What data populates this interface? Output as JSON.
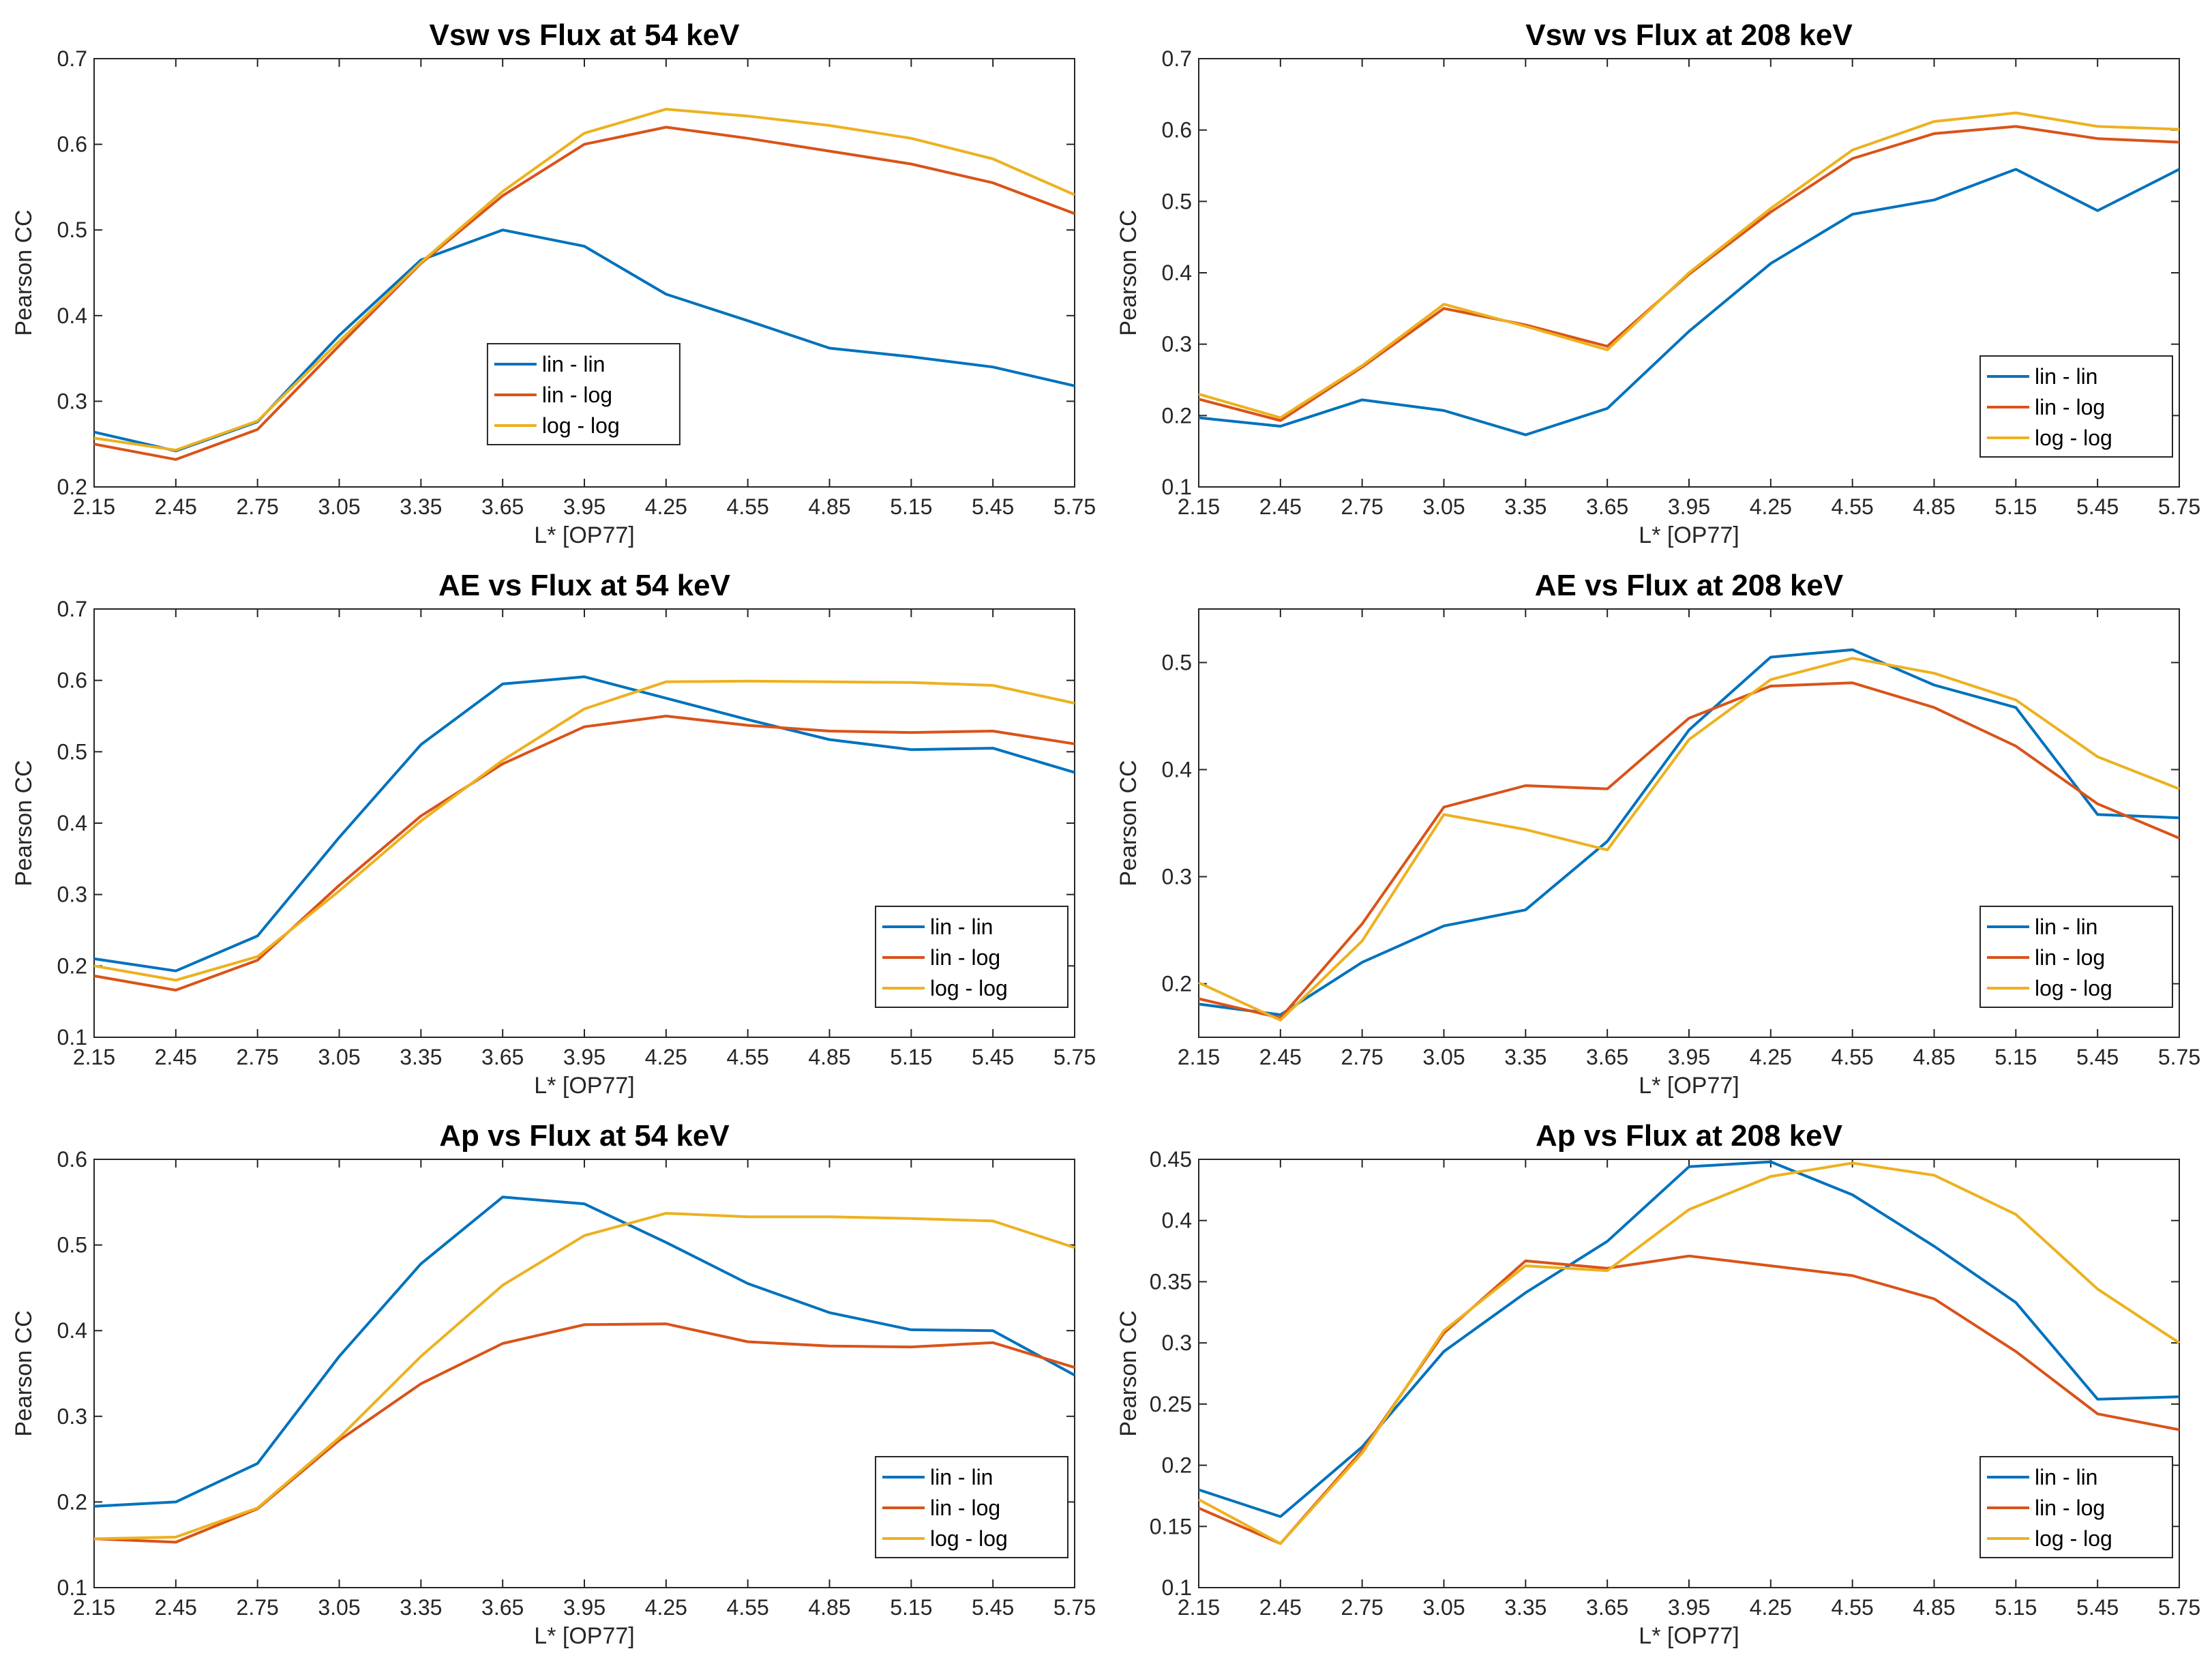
{
  "colors": {
    "lin_lin": "#0072BD",
    "lin_log": "#D95319",
    "log_log": "#EDB120",
    "axis": "#262626",
    "background": "#ffffff"
  },
  "chart_data": [
    {
      "type": "line",
      "title": "Vsw vs Flux at 54 keV",
      "xlabel": "L* [OP77]",
      "ylabel": "Pearson CC",
      "x": [
        2.15,
        2.45,
        2.75,
        3.05,
        3.35,
        3.65,
        3.95,
        4.25,
        4.55,
        4.85,
        5.15,
        5.45,
        5.75
      ],
      "x_ticks": [
        "2.15",
        "2.45",
        "2.75",
        "3.05",
        "3.35",
        "3.65",
        "3.95",
        "4.25",
        "4.55",
        "4.85",
        "5.15",
        "5.45",
        "5.75"
      ],
      "ylim": [
        0.2,
        0.7
      ],
      "y_ticks": [
        "0.2",
        "0.3",
        "0.4",
        "0.5",
        "0.6",
        "0.7"
      ],
      "legend_position": "bottom-center",
      "series": [
        {
          "name": "lin - lin",
          "values": [
            0.264,
            0.242,
            0.276,
            0.377,
            0.465,
            0.5,
            0.481,
            0.425,
            0.394,
            0.362,
            0.352,
            0.34,
            0.318
          ]
        },
        {
          "name": "lin - log",
          "values": [
            0.25,
            0.232,
            0.267,
            0.365,
            0.461,
            0.54,
            0.6,
            0.62,
            0.607,
            0.592,
            0.577,
            0.555,
            0.519
          ]
        },
        {
          "name": "log - log",
          "values": [
            0.257,
            0.243,
            0.277,
            0.37,
            0.462,
            0.545,
            0.613,
            0.641,
            0.633,
            0.622,
            0.607,
            0.583,
            0.541
          ]
        }
      ]
    },
    {
      "type": "line",
      "title": "Vsw vs Flux at 208 keV",
      "xlabel": "L* [OP77]",
      "ylabel": "Pearson CC",
      "x": [
        2.15,
        2.45,
        2.75,
        3.05,
        3.35,
        3.65,
        3.95,
        4.25,
        4.55,
        4.85,
        5.15,
        5.45,
        5.75
      ],
      "x_ticks": [
        "2.15",
        "2.45",
        "2.75",
        "3.05",
        "3.35",
        "3.65",
        "3.95",
        "4.25",
        "4.55",
        "4.85",
        "5.15",
        "5.45",
        "5.75"
      ],
      "ylim": [
        0.1,
        0.7
      ],
      "y_ticks": [
        "0.1",
        "0.2",
        "0.3",
        "0.4",
        "0.5",
        "0.6",
        "0.7"
      ],
      "legend_position": "bottom-right",
      "series": [
        {
          "name": "lin - lin",
          "values": [
            0.197,
            0.185,
            0.222,
            0.207,
            0.173,
            0.21,
            0.318,
            0.413,
            0.482,
            0.502,
            0.545,
            0.487,
            0.545
          ]
        },
        {
          "name": "lin - log",
          "values": [
            0.223,
            0.193,
            0.268,
            0.35,
            0.327,
            0.297,
            0.398,
            0.485,
            0.56,
            0.595,
            0.605,
            0.588,
            0.583
          ]
        },
        {
          "name": "log - log",
          "values": [
            0.23,
            0.197,
            0.27,
            0.356,
            0.325,
            0.292,
            0.4,
            0.49,
            0.572,
            0.612,
            0.624,
            0.605,
            0.601
          ]
        }
      ]
    },
    {
      "type": "line",
      "title": "AE vs Flux at 54 keV",
      "xlabel": "L* [OP77]",
      "ylabel": "Pearson CC",
      "x": [
        2.15,
        2.45,
        2.75,
        3.05,
        3.35,
        3.65,
        3.95,
        4.25,
        4.55,
        4.85,
        5.15,
        5.45,
        5.75
      ],
      "x_ticks": [
        "2.15",
        "2.45",
        "2.75",
        "3.05",
        "3.35",
        "3.65",
        "3.95",
        "4.25",
        "4.55",
        "4.85",
        "5.15",
        "5.45",
        "5.75"
      ],
      "ylim": [
        0.1,
        0.7
      ],
      "y_ticks": [
        "0.1",
        "0.2",
        "0.3",
        "0.4",
        "0.5",
        "0.6",
        "0.7"
      ],
      "legend_position": "bottom-right",
      "series": [
        {
          "name": "lin - lin",
          "values": [
            0.21,
            0.193,
            0.242,
            0.38,
            0.51,
            0.595,
            0.605,
            0.575,
            0.545,
            0.517,
            0.503,
            0.505,
            0.471
          ]
        },
        {
          "name": "lin - log",
          "values": [
            0.186,
            0.166,
            0.208,
            0.313,
            0.41,
            0.483,
            0.535,
            0.55,
            0.537,
            0.529,
            0.527,
            0.529,
            0.511
          ]
        },
        {
          "name": "log - log",
          "values": [
            0.2,
            0.18,
            0.213,
            0.305,
            0.403,
            0.488,
            0.56,
            0.598,
            0.599,
            0.598,
            0.597,
            0.593,
            0.568
          ]
        }
      ]
    },
    {
      "type": "line",
      "title": "AE vs Flux at 208 keV",
      "xlabel": "L* [OP77]",
      "ylabel": "Pearson CC",
      "x": [
        2.15,
        2.45,
        2.75,
        3.05,
        3.35,
        3.65,
        3.95,
        4.25,
        4.55,
        4.85,
        5.15,
        5.45,
        5.75
      ],
      "x_ticks": [
        "2.15",
        "2.45",
        "2.75",
        "3.05",
        "3.35",
        "3.65",
        "3.95",
        "4.25",
        "4.55",
        "4.85",
        "5.15",
        "5.45",
        "5.75"
      ],
      "ylim": [
        0.15,
        0.55
      ],
      "y_ticks": [
        "0.2",
        "0.3",
        "0.4",
        "0.5"
      ],
      "y_tick_values": [
        0.2,
        0.3,
        0.4,
        0.5
      ],
      "legend_position": "bottom-right",
      "series": [
        {
          "name": "lin - lin",
          "values": [
            0.181,
            0.171,
            0.22,
            0.254,
            0.269,
            0.333,
            0.437,
            0.505,
            0.512,
            0.479,
            0.458,
            0.358,
            0.355
          ]
        },
        {
          "name": "lin - log",
          "values": [
            0.186,
            0.168,
            0.256,
            0.365,
            0.385,
            0.382,
            0.448,
            0.478,
            0.481,
            0.458,
            0.422,
            0.368,
            0.336
          ]
        },
        {
          "name": "log - log",
          "values": [
            0.201,
            0.166,
            0.24,
            0.358,
            0.344,
            0.325,
            0.428,
            0.484,
            0.504,
            0.49,
            0.465,
            0.412,
            0.382
          ]
        }
      ]
    },
    {
      "type": "line",
      "title": "Ap vs Flux at 54 keV",
      "xlabel": "L* [OP77]",
      "ylabel": "Pearson CC",
      "x": [
        2.15,
        2.45,
        2.75,
        3.05,
        3.35,
        3.65,
        3.95,
        4.25,
        4.55,
        4.85,
        5.15,
        5.45,
        5.75
      ],
      "x_ticks": [
        "2.15",
        "2.45",
        "2.75",
        "3.05",
        "3.35",
        "3.65",
        "3.95",
        "4.25",
        "4.55",
        "4.85",
        "5.15",
        "5.45",
        "5.75"
      ],
      "ylim": [
        0.1,
        0.6
      ],
      "y_ticks": [
        "0.1",
        "0.2",
        "0.3",
        "0.4",
        "0.5",
        "0.6"
      ],
      "legend_position": "bottom-right",
      "series": [
        {
          "name": "lin - lin",
          "values": [
            0.195,
            0.2,
            0.245,
            0.37,
            0.478,
            0.556,
            0.548,
            0.503,
            0.455,
            0.421,
            0.401,
            0.4,
            0.348
          ]
        },
        {
          "name": "lin - log",
          "values": [
            0.157,
            0.153,
            0.192,
            0.272,
            0.338,
            0.385,
            0.407,
            0.408,
            0.387,
            0.382,
            0.381,
            0.386,
            0.357
          ]
        },
        {
          "name": "log - log",
          "values": [
            0.157,
            0.159,
            0.193,
            0.275,
            0.37,
            0.453,
            0.511,
            0.537,
            0.533,
            0.533,
            0.531,
            0.528,
            0.497
          ]
        }
      ]
    },
    {
      "type": "line",
      "title": "Ap vs Flux at 208 keV",
      "xlabel": "L* [OP77]",
      "ylabel": "Pearson CC",
      "x": [
        2.15,
        2.45,
        2.75,
        3.05,
        3.35,
        3.65,
        3.95,
        4.25,
        4.55,
        4.85,
        5.15,
        5.45,
        5.75
      ],
      "x_ticks": [
        "2.15",
        "2.45",
        "2.75",
        "3.05",
        "3.35",
        "3.65",
        "3.95",
        "4.25",
        "4.55",
        "4.85",
        "5.15",
        "5.45",
        "5.75"
      ],
      "ylim": [
        0.1,
        0.45
      ],
      "y_ticks": [
        "0.1",
        "0.15",
        "0.2",
        "0.25",
        "0.3",
        "0.35",
        "0.4",
        "0.45"
      ],
      "legend_position": "bottom-right",
      "series": [
        {
          "name": "lin - lin",
          "values": [
            0.18,
            0.158,
            0.215,
            0.293,
            0.341,
            0.383,
            0.444,
            0.448,
            0.421,
            0.379,
            0.333,
            0.254,
            0.256
          ]
        },
        {
          "name": "lin - log",
          "values": [
            0.165,
            0.136,
            0.212,
            0.308,
            0.367,
            0.361,
            0.371,
            0.363,
            0.355,
            0.336,
            0.293,
            0.242,
            0.229
          ]
        },
        {
          "name": "log - log",
          "values": [
            0.172,
            0.136,
            0.21,
            0.31,
            0.363,
            0.359,
            0.409,
            0.436,
            0.447,
            0.437,
            0.405,
            0.344,
            0.3
          ]
        }
      ]
    }
  ]
}
